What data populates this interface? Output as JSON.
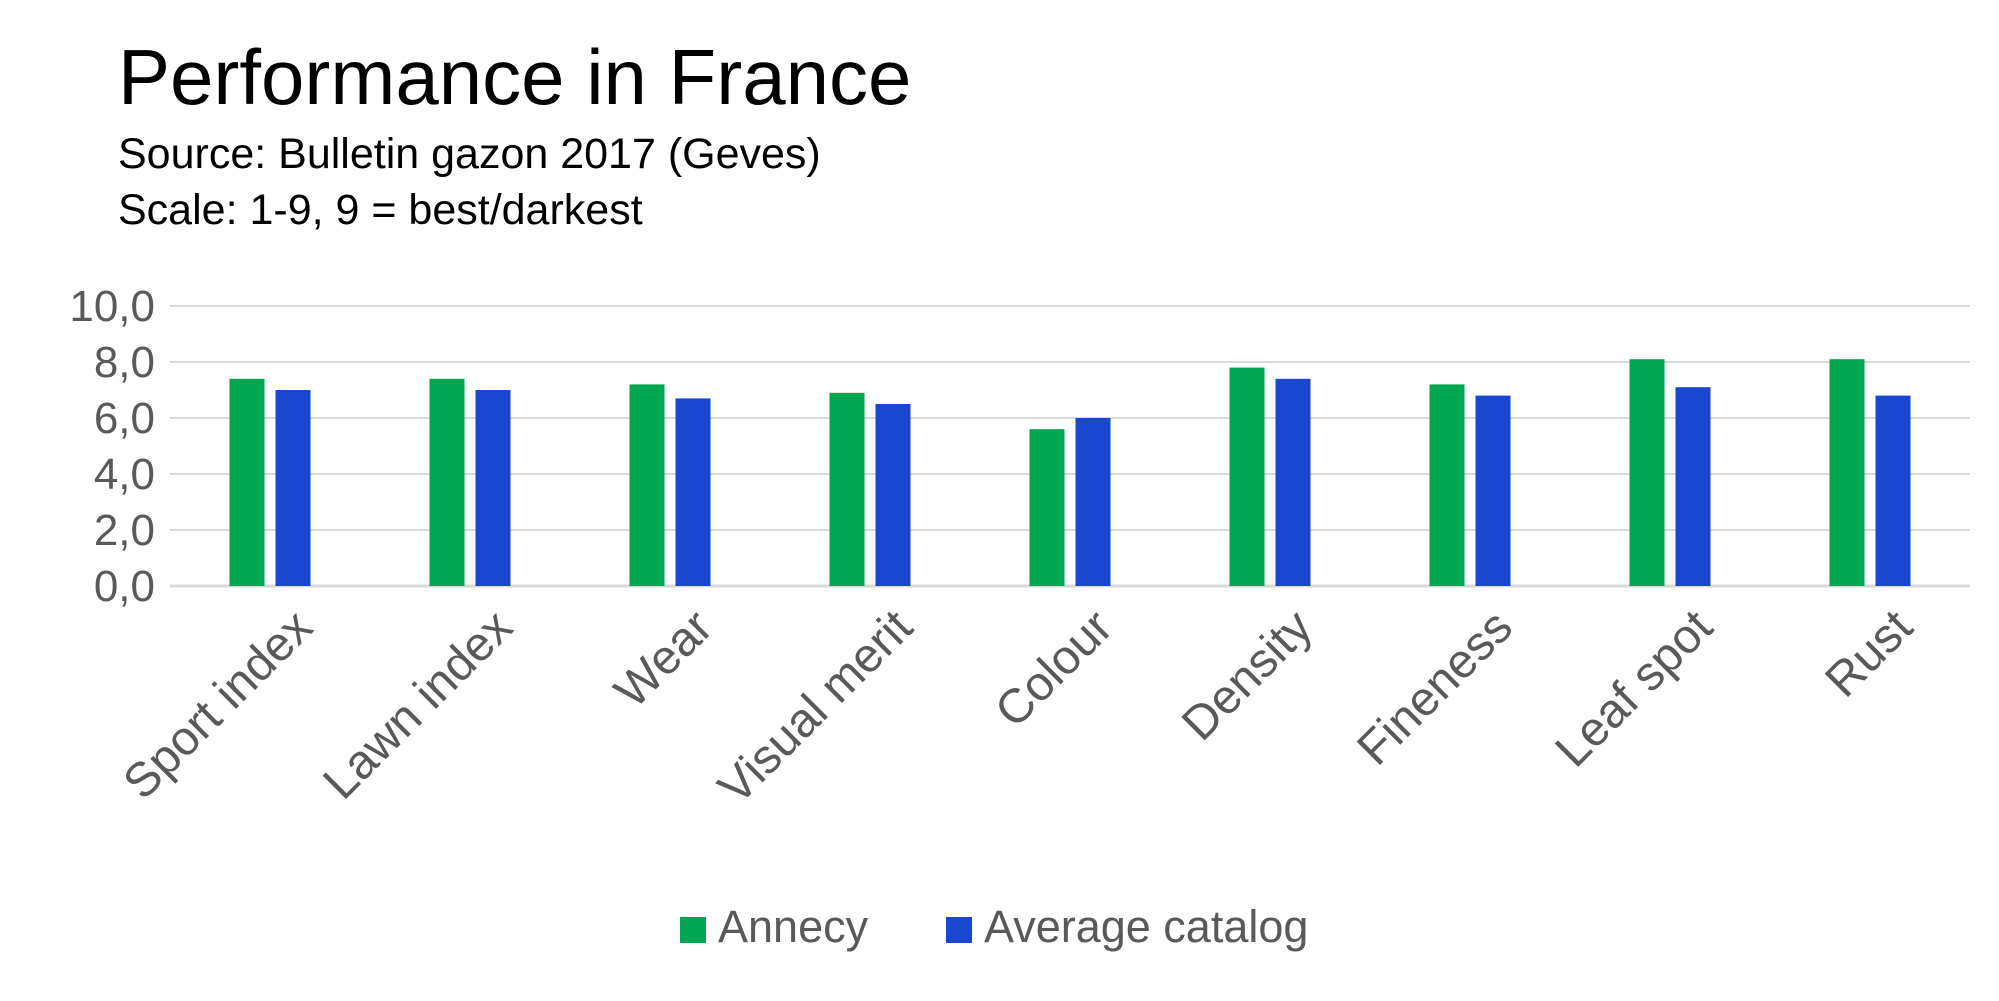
{
  "chart_data": {
    "type": "bar",
    "title": "Performance in France",
    "subtitle_lines": [
      "Source: Bulletin gazon 2017 (Geves)",
      "Scale: 1-9, 9 = best/darkest"
    ],
    "categories": [
      "Sport index",
      "Lawn index",
      "Wear",
      "Visual merit",
      "Colour",
      "Density",
      "Fineness",
      "Leaf spot",
      "Rust"
    ],
    "series": [
      {
        "name": "Annecy",
        "color": "#00A651",
        "values": [
          7.4,
          7.4,
          7.2,
          6.9,
          5.6,
          7.8,
          7.2,
          8.1,
          8.1
        ]
      },
      {
        "name": "Average catalog",
        "color": "#1A47CF",
        "values": [
          7.0,
          7.0,
          6.7,
          6.5,
          6.0,
          7.4,
          6.8,
          7.1,
          6.8
        ]
      }
    ],
    "ylim": [
      0,
      10
    ],
    "yticks": [
      "0,0",
      "2,0",
      "4,0",
      "6,0",
      "8,0",
      "10,0"
    ],
    "ytick_values": [
      0,
      2,
      4,
      6,
      8,
      10
    ],
    "grid": true,
    "legend_position": "bottom-center",
    "xlabel": "",
    "ylabel": ""
  }
}
